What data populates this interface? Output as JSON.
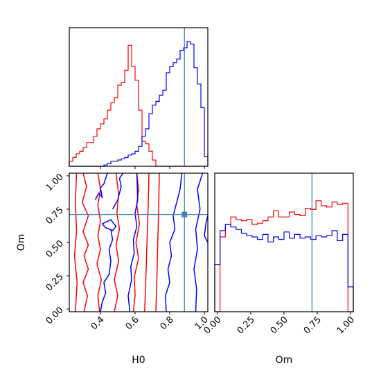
{
  "chart_data": {
    "type": "corner",
    "params": [
      "H0",
      "Om"
    ],
    "truth": {
      "H0": 0.885,
      "Om": 0.71
    },
    "colors": {
      "red": "#ff0000",
      "blue": "#0000ff",
      "truth": "#4682b4"
    },
    "axes": {
      "H0": {
        "xlabel": "H0",
        "range": [
          0.22,
          1.02
        ],
        "ticks": [
          0.4,
          0.6,
          0.8,
          1.0
        ],
        "tick_labels": [
          "0.4",
          "0.6",
          "0.8",
          "1.0"
        ]
      },
      "Om": {
        "xlabel": "Om",
        "ylabel": "Om",
        "range": [
          -0.02,
          1.02
        ],
        "ticks": [
          0.0,
          0.25,
          0.5,
          0.75,
          1.0
        ],
        "tick_labels": [
          "0.00",
          "0.25",
          "0.50",
          "0.75",
          "1.00"
        ]
      }
    },
    "hist_H0": {
      "bin_edges": [
        0.22,
        0.24,
        0.26,
        0.28,
        0.3,
        0.32,
        0.34,
        0.36,
        0.38,
        0.4,
        0.42,
        0.44,
        0.46,
        0.48,
        0.5,
        0.52,
        0.54,
        0.56,
        0.58,
        0.6,
        0.62,
        0.64,
        0.66,
        0.68,
        0.7,
        0.72,
        0.74,
        0.76,
        0.78,
        0.8,
        0.82,
        0.84,
        0.86,
        0.88,
        0.9,
        0.92,
        0.94,
        0.96,
        0.98,
        1.0,
        1.02
      ],
      "red": [
        0.04,
        0.07,
        0.1,
        0.12,
        0.15,
        0.19,
        0.19,
        0.24,
        0.3,
        0.34,
        0.38,
        0.45,
        0.51,
        0.55,
        0.65,
        0.67,
        0.77,
        0.97,
        0.8,
        0.69,
        0.45,
        0.2,
        0.18,
        0.12,
        0.05,
        0,
        0,
        0,
        0,
        0,
        0,
        0,
        0,
        0,
        0,
        0,
        0,
        0,
        0,
        0
      ],
      "blue": [
        0,
        0,
        0,
        0,
        0,
        0,
        0,
        0,
        0,
        0,
        0.01,
        0.02,
        0.04,
        0.04,
        0.05,
        0.06,
        0.07,
        0.09,
        0.1,
        0.12,
        0.16,
        0.24,
        0.3,
        0.42,
        0.49,
        0.52,
        0.57,
        0.61,
        0.75,
        0.8,
        0.83,
        0.86,
        0.93,
        0.95,
        1.0,
        0.98,
        0.79,
        0.66,
        0.47,
        0.08
      ]
    },
    "hist_Om": {
      "bin_edges": [
        -0.02,
        0.02,
        0.06,
        0.1,
        0.14,
        0.18,
        0.22,
        0.26,
        0.3,
        0.34,
        0.38,
        0.42,
        0.46,
        0.5,
        0.54,
        0.58,
        0.62,
        0.66,
        0.7,
        0.74,
        0.78,
        0.82,
        0.86,
        0.9,
        0.94,
        0.98,
        1.02
      ],
      "red": [
        0,
        0.6,
        0.7,
        0.76,
        0.74,
        0.73,
        0.74,
        0.7,
        0.71,
        0.73,
        0.76,
        0.81,
        0.76,
        0.76,
        0.8,
        0.78,
        0.77,
        0.83,
        0.82,
        0.89,
        0.85,
        0.84,
        0.88,
        0.86,
        0.87,
        0
      ],
      "blue": [
        0.38,
        0.65,
        0.7,
        0.68,
        0.66,
        0.63,
        0.61,
        0.6,
        0.58,
        0.62,
        0.56,
        0.6,
        0.58,
        0.64,
        0.59,
        0.62,
        0.59,
        0.6,
        0.58,
        0.61,
        0.6,
        0.61,
        0.65,
        0.57,
        0.62,
        0.2
      ]
    },
    "contours_2d": {
      "red": [
        [
          [
            0.255,
            -0.02
          ],
          [
            0.265,
            0.2
          ],
          [
            0.25,
            0.4
          ],
          [
            0.262,
            0.58
          ],
          [
            0.255,
            0.8
          ],
          [
            0.262,
            1.02
          ]
        ],
        [
          [
            0.305,
            -0.02
          ],
          [
            0.325,
            0.1
          ],
          [
            0.3,
            0.2
          ],
          [
            0.33,
            0.3
          ],
          [
            0.305,
            0.4
          ],
          [
            0.33,
            0.48
          ],
          [
            0.3,
            0.58
          ],
          [
            0.33,
            0.7
          ],
          [
            0.295,
            0.8
          ],
          [
            0.32,
            0.92
          ],
          [
            0.3,
            1.02
          ]
        ],
        [
          [
            0.395,
            -0.02
          ],
          [
            0.385,
            0.1
          ],
          [
            0.405,
            0.22
          ],
          [
            0.38,
            0.34
          ],
          [
            0.4,
            0.45
          ],
          [
            0.385,
            0.55
          ],
          [
            0.4,
            0.66
          ],
          [
            0.385,
            0.78
          ],
          [
            0.4,
            0.9
          ],
          [
            0.385,
            1.02
          ]
        ],
        [
          [
            0.48,
            -0.02
          ],
          [
            0.5,
            0.1
          ],
          [
            0.48,
            0.22
          ],
          [
            0.505,
            0.36
          ],
          [
            0.49,
            0.48
          ],
          [
            0.51,
            0.6
          ],
          [
            0.495,
            0.72
          ],
          [
            0.505,
            0.86
          ],
          [
            0.49,
            1.02
          ]
        ],
        [
          [
            0.59,
            -0.02
          ],
          [
            0.6,
            0.1
          ],
          [
            0.595,
            0.24
          ],
          [
            0.62,
            0.38
          ],
          [
            0.605,
            0.5
          ],
          [
            0.625,
            0.64
          ],
          [
            0.61,
            0.78
          ],
          [
            0.62,
            0.9
          ],
          [
            0.61,
            1.02
          ]
        ],
        [
          [
            0.655,
            -0.02
          ],
          [
            0.66,
            0.15
          ],
          [
            0.665,
            0.35
          ],
          [
            0.67,
            0.55
          ],
          [
            0.675,
            0.75
          ],
          [
            0.68,
            1.02
          ]
        ],
        [
          [
            0.72,
            -0.02
          ],
          [
            0.725,
            0.2
          ],
          [
            0.73,
            0.45
          ],
          [
            0.735,
            0.7
          ],
          [
            0.74,
            1.02
          ]
        ]
      ],
      "blue": [
        [
          [
            0.37,
            0.82
          ],
          [
            0.39,
            0.87
          ],
          [
            0.41,
            0.84
          ],
          [
            0.4,
            0.91
          ],
          [
            0.42,
            0.94
          ],
          [
            0.44,
            1.02
          ]
        ],
        [
          [
            0.41,
            0.64
          ],
          [
            0.46,
            0.67
          ],
          [
            0.49,
            0.62
          ],
          [
            0.47,
            0.59
          ],
          [
            0.43,
            0.61
          ],
          [
            0.41,
            0.64
          ]
        ],
        [
          [
            0.4,
            -0.02
          ],
          [
            0.41,
            0.05
          ],
          [
            0.43,
            0.12
          ],
          [
            0.42,
            0.2
          ],
          [
            0.45,
            0.26
          ],
          [
            0.46,
            0.36
          ],
          [
            0.45,
            0.45
          ],
          [
            0.47,
            0.52
          ],
          [
            0.46,
            0.6
          ]
        ],
        [
          [
            0.47,
            0.75
          ],
          [
            0.5,
            0.82
          ],
          [
            0.52,
            0.92
          ],
          [
            0.51,
            0.98
          ],
          [
            0.53,
            1.02
          ]
        ],
        [
          [
            0.57,
            -0.02
          ],
          [
            0.56,
            0.1
          ],
          [
            0.58,
            0.22
          ],
          [
            0.575,
            0.32
          ],
          [
            0.595,
            0.42
          ],
          [
            0.59,
            0.52
          ],
          [
            0.61,
            0.62
          ],
          [
            0.6,
            0.72
          ],
          [
            0.615,
            0.82
          ],
          [
            0.61,
            1.02
          ]
        ],
        [
          [
            0.78,
            -0.02
          ],
          [
            0.775,
            0.1
          ],
          [
            0.8,
            0.2
          ],
          [
            0.79,
            0.3
          ],
          [
            0.81,
            0.4
          ],
          [
            0.8,
            0.5
          ],
          [
            0.83,
            0.6
          ],
          [
            0.82,
            0.7
          ],
          [
            0.84,
            0.8
          ],
          [
            0.86,
            0.9
          ],
          [
            0.87,
            1.02
          ]
        ],
        [
          [
            0.95,
            -0.02
          ],
          [
            0.955,
            0.15
          ],
          [
            0.94,
            0.3
          ],
          [
            0.96,
            0.45
          ],
          [
            0.95,
            0.6
          ],
          [
            0.975,
            0.75
          ],
          [
            0.96,
            0.9
          ],
          [
            0.99,
            1.02
          ]
        ],
        [
          [
            1.02,
            0.5
          ],
          [
            1.0,
            0.55
          ],
          [
            1.01,
            0.65
          ],
          [
            1.02,
            0.7
          ]
        ]
      ]
    }
  }
}
